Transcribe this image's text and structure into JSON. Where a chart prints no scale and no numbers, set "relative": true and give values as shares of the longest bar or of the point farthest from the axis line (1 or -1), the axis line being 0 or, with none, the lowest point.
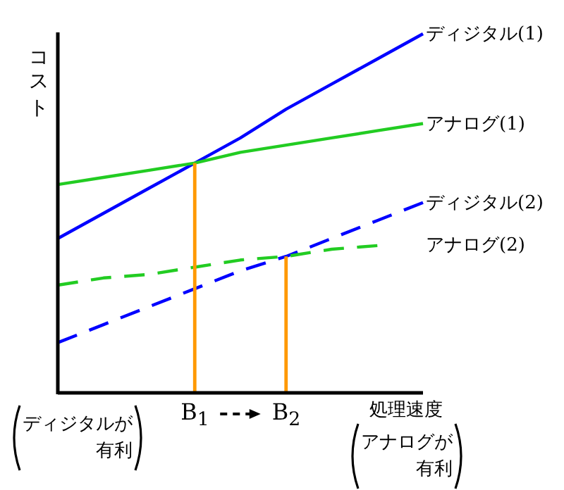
{
  "chart_data": {
    "type": "line",
    "relative": true,
    "xlabel": "処理速度",
    "ylabel": "コスト",
    "tick_labels": "x",
    "categories": [
      null,
      null,
      null,
      "B$_{1}$",
      null,
      "B$_{2}$",
      null,
      null,
      null
    ],
    "series": [
      {
        "name": "ディジタル(1)",
        "color": "#0000ff",
        "values": [
          0.43,
          0.5,
          0.57,
          0.64,
          0.71,
          0.79,
          0.86,
          0.93,
          1.0
        ]
      },
      {
        "name": "アナログ(1)",
        "color": "#22cc22",
        "values": [
          0.58,
          0.6,
          0.62,
          0.64,
          0.67,
          0.69,
          0.71,
          0.73,
          0.75
        ]
      },
      {
        "name": "ディジタル(2)",
        "color": "#0000ff",
        "line_style": "dashed",
        "values": [
          0.14,
          0.19,
          0.24,
          0.29,
          0.34,
          0.38,
          0.43,
          0.48,
          0.53
        ]
      },
      {
        "name": "アナログ(2)",
        "color": "#22cc22",
        "line_style": "dashed",
        "values": [
          0.3,
          0.32,
          0.33,
          0.35,
          0.37,
          0.38,
          0.4,
          0.41,
          null
        ]
      },
      {
        "type": "bar",
        "color": "#ff9900",
        "values": [
          null,
          null,
          null,
          0.64,
          null,
          0.38,
          null,
          null,
          null
        ]
      }
    ],
    "annotations": [
      "ディジタルが有利",
      "アナログが有利"
    ]
  }
}
